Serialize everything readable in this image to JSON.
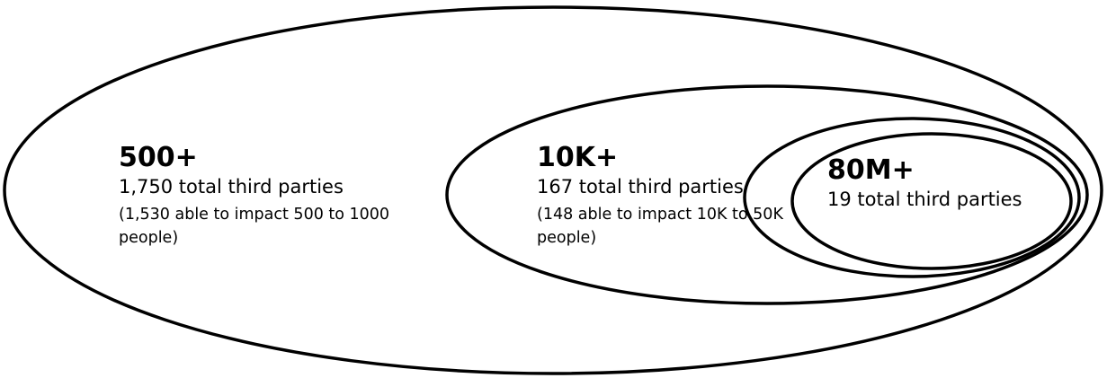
{
  "diagram": {
    "stroke_color": "#000000",
    "fill_color": "#ffffff",
    "groups": [
      {
        "id": "outer",
        "headline": "500+",
        "total": "1,750 total third parties",
        "detail": "(1,530 able to impact 500 to 1000 people)"
      },
      {
        "id": "middle",
        "headline": "10K+",
        "total": "167 total third parties",
        "detail": "(148 able to impact 10K to 50K people)"
      },
      {
        "id": "inner",
        "headline": "80M+",
        "total": "19 total third parties"
      }
    ]
  }
}
